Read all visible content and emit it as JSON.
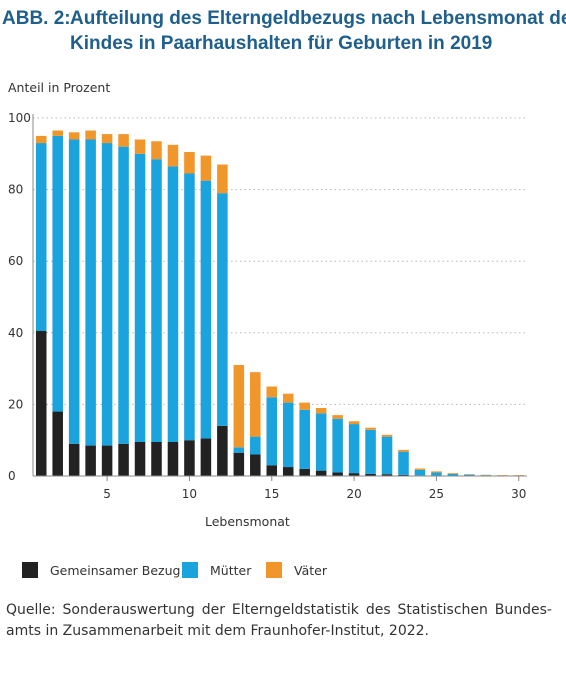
{
  "figure": {
    "number": "ABB. 2:",
    "title_line1": "Aufteilung des Elterngeldbezugs nach Lebensmonat des",
    "title_line2": "Kindes in Paarhaushalten für Geburten in 2019"
  },
  "source": {
    "line1": "Quelle: Sonderauswertung der Elterngeldstatistik des Statistischen Bundes-",
    "line2": "amts in Zusammenarbeit mit dem Fraunhofer-Institut, 2022."
  },
  "chart_data": {
    "type": "bar",
    "stacked": true,
    "ylabel": "Anteil in Prozent",
    "xlabel": "Lebensmonat",
    "ylim": [
      0,
      100
    ],
    "xlim": [
      0.5,
      30.5
    ],
    "yticks": [
      0,
      20,
      40,
      60,
      80,
      100
    ],
    "xticks": [
      5,
      10,
      15,
      20,
      25,
      30
    ],
    "grid": "horizontal dotted",
    "legend_position": "bottom",
    "categories": [
      1,
      2,
      3,
      4,
      5,
      6,
      7,
      8,
      9,
      10,
      11,
      12,
      13,
      14,
      15,
      16,
      17,
      18,
      19,
      20,
      21,
      22,
      23,
      24,
      25,
      26,
      27,
      28,
      29,
      30
    ],
    "series": [
      {
        "name": "Gemeinsamer Bezug",
        "color": "#222222",
        "values": [
          40.5,
          18,
          9,
          8.5,
          8.5,
          9,
          9.5,
          9.5,
          9.5,
          10,
          10.5,
          14,
          6.5,
          6,
          3,
          2.5,
          2,
          1.5,
          1,
          0.8,
          0.6,
          0.5,
          0.3,
          0.2,
          0.1,
          0.1,
          0.1,
          0.05,
          0.05,
          0.05
        ]
      },
      {
        "name": "Mütter",
        "color": "#1aa3dd",
        "values": [
          52.5,
          77,
          85,
          85.5,
          84.5,
          83,
          80.5,
          79,
          77,
          74.5,
          72,
          65,
          1.5,
          5,
          19,
          18,
          16.5,
          16,
          15,
          13.7,
          12.3,
          10.5,
          6.5,
          1.5,
          0.9,
          0.5,
          0.3,
          0.2,
          0.1,
          0.1
        ]
      },
      {
        "name": "Väter",
        "color": "#f0962a",
        "values": [
          2,
          1.5,
          2,
          2.5,
          2.5,
          3.5,
          4,
          5,
          6,
          6,
          7,
          8,
          23,
          18,
          3,
          2.5,
          2,
          1.5,
          1,
          0.8,
          0.6,
          0.5,
          0.5,
          0.4,
          0.3,
          0.2,
          0.1,
          0.1,
          0.1,
          0.1
        ]
      }
    ]
  }
}
